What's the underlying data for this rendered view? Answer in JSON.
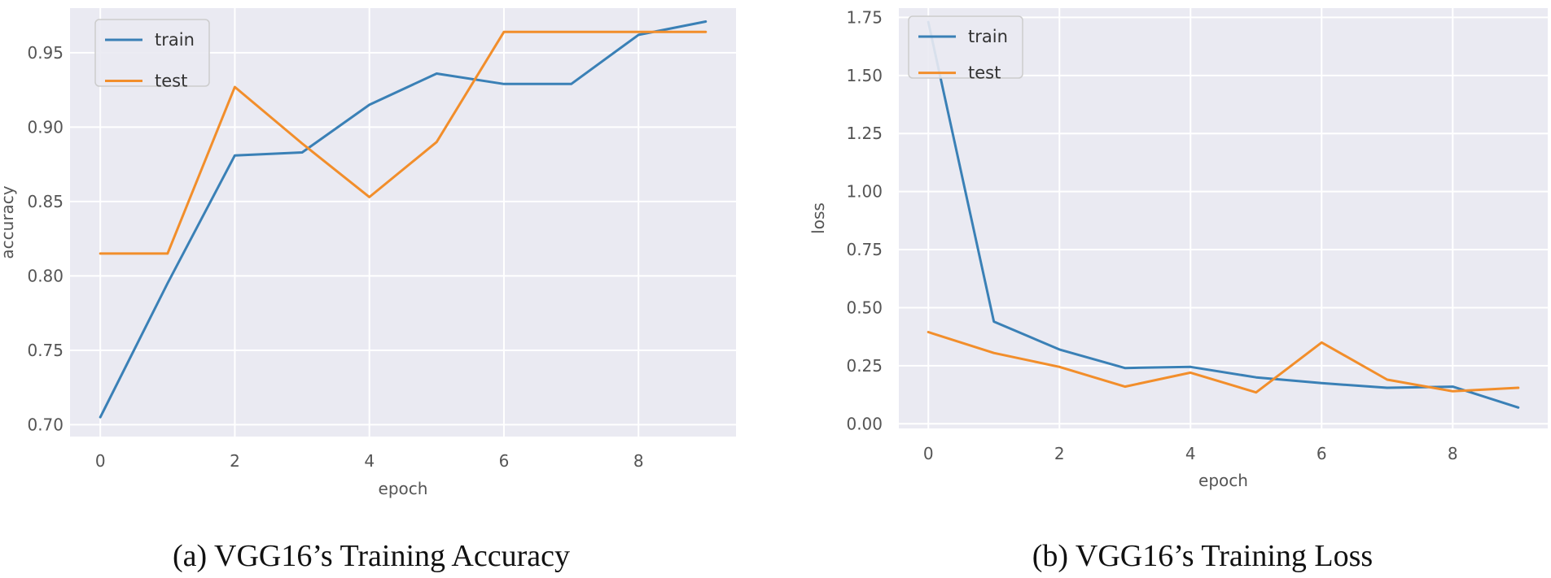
{
  "chart_data": [
    {
      "type": "line",
      "title": "",
      "xlabel": "epoch",
      "ylabel": "accuracy",
      "caption": "(a) VGG16’s Training Accuracy",
      "x": [
        0,
        1,
        2,
        3,
        4,
        5,
        6,
        7,
        8,
        9
      ],
      "xlim": [
        -0.45,
        9.45
      ],
      "ylim": [
        0.692,
        0.98
      ],
      "xticks": [
        0,
        2,
        4,
        6,
        8
      ],
      "yticks": [
        0.7,
        0.75,
        0.8,
        0.85,
        0.9,
        0.95
      ],
      "ytick_labels": [
        "0.70",
        "0.75",
        "0.80",
        "0.85",
        "0.90",
        "0.95"
      ],
      "legend": "top-left",
      "grid": true,
      "series": [
        {
          "name": "train",
          "color": "#3a80b6",
          "values": [
            0.705,
            0.795,
            0.881,
            0.883,
            0.915,
            0.936,
            0.929,
            0.929,
            0.962,
            0.971
          ]
        },
        {
          "name": "test",
          "color": "#f28e2b",
          "values": [
            0.815,
            0.815,
            0.927,
            0.889,
            0.853,
            0.89,
            0.964,
            0.964,
            0.964,
            0.964
          ]
        }
      ]
    },
    {
      "type": "line",
      "title": "",
      "xlabel": "epoch",
      "ylabel": "loss",
      "caption": "(b) VGG16’s Training Loss",
      "x": [
        0,
        1,
        2,
        3,
        4,
        5,
        6,
        7,
        8,
        9
      ],
      "xlim": [
        -0.45,
        9.45
      ],
      "ylim": [
        -0.02,
        1.79
      ],
      "xticks": [
        0,
        2,
        4,
        6,
        8
      ],
      "yticks": [
        0.0,
        0.25,
        0.5,
        0.75,
        1.0,
        1.25,
        1.5,
        1.75
      ],
      "ytick_labels": [
        "0.00",
        "0.25",
        "0.50",
        "0.75",
        "1.00",
        "1.25",
        "1.50",
        "1.75"
      ],
      "legend": "top-left",
      "grid": true,
      "series": [
        {
          "name": "train",
          "color": "#3a80b6",
          "values": [
            1.73,
            0.44,
            0.32,
            0.24,
            0.245,
            0.2,
            0.175,
            0.155,
            0.16,
            0.07
          ]
        },
        {
          "name": "test",
          "color": "#f28e2b",
          "values": [
            0.395,
            0.305,
            0.245,
            0.16,
            0.22,
            0.135,
            0.35,
            0.19,
            0.14,
            0.155
          ]
        }
      ]
    }
  ]
}
